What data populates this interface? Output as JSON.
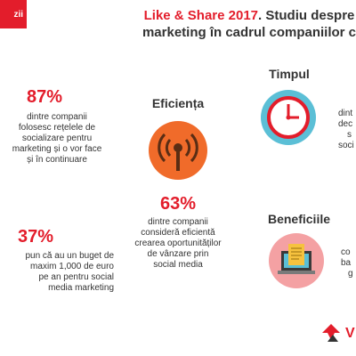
{
  "tab": {
    "label": "zii"
  },
  "title": {
    "accent": "Like & Share 2017",
    "rest_line1": ". Studiu despre",
    "line2": "marketing în cadrul companiilor c"
  },
  "stats": {
    "left_top": {
      "value": "87%",
      "lines": [
        "dintre companii",
        "folosesc rețelele de",
        "socializare pentru",
        "marketing și o vor face",
        "și în continuare"
      ]
    },
    "left_bottom": {
      "value": "37%",
      "lines": [
        "pun că au un buget de",
        "maxim 1,000 de euro",
        "pe an pentru social",
        "media marketing"
      ]
    },
    "center": {
      "value": "63%",
      "lines": [
        "dintre companii",
        "consideră eficientă",
        "crearea oportunităților",
        "de vânzare prin",
        "social media"
      ]
    }
  },
  "sections": {
    "eficienta": {
      "heading": "Eficiența",
      "icon": "broadcast-antenna-icon"
    },
    "timpul": {
      "heading": "Timpul",
      "icon": "clock-icon",
      "lines": [
        "dint",
        "dec",
        "s",
        "soci"
      ]
    },
    "beneficiile": {
      "heading": "Beneficiile",
      "icon": "laptop-document-icon",
      "lines": [
        "co",
        "ba",
        "",
        "g"
      ]
    }
  },
  "colors": {
    "brand_red": "#e31d2b",
    "icon_orange": "#f06b2a",
    "clock_blue": "#5bbfd6",
    "benefit_pink": "#f4a1a3"
  },
  "logo": {
    "icon": "red-arrow-logo-icon",
    "text": "V"
  }
}
